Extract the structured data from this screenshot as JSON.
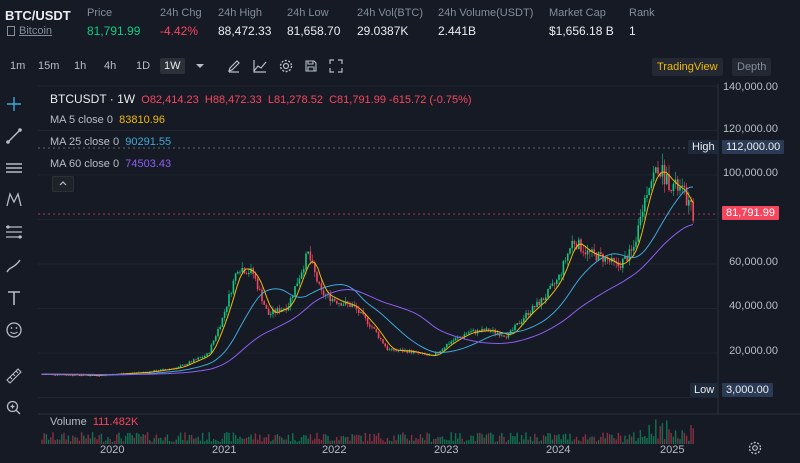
{
  "header": {
    "pair": "BTC/USDT",
    "pair_sub": "Bitcoin",
    "stats": [
      {
        "label": "Price",
        "value": "81,791.99",
        "tone": "green"
      },
      {
        "label": "24h Chg",
        "value": "-4.42%",
        "tone": "red"
      },
      {
        "label": "24h High",
        "value": "88,472.33",
        "tone": ""
      },
      {
        "label": "24h Low",
        "value": "81,658.70",
        "tone": ""
      },
      {
        "label": "24h Vol(BTC)",
        "value": "29.0387K",
        "tone": ""
      },
      {
        "label": "24h Volume(USDT)",
        "value": "2.441B",
        "tone": ""
      },
      {
        "label": "Market Cap",
        "value": "$1,656.18 B",
        "tone": ""
      },
      {
        "label": "Rank",
        "value": "1",
        "tone": ""
      }
    ]
  },
  "toolbar": {
    "timeframes": [
      "1m",
      "15m",
      "1h",
      "4h",
      "1D",
      "1W"
    ],
    "active_timeframe": "1W",
    "tabs": {
      "tradingview": "TradingView",
      "depth": "Depth"
    }
  },
  "chart": {
    "symbol": "BTCUSDT · 1W",
    "ohlc": {
      "o_label": "O",
      "o": "82,414.23",
      "h_label": "H",
      "h": "88,472.33",
      "l_label": "L",
      "l": "81,278.52",
      "c_label": "C",
      "c": "81,791.99",
      "chg": "-615.72 (-0.75%)"
    },
    "ma": [
      {
        "label": "MA 5 close 0",
        "value": "83810.96",
        "color": "#f0b90b"
      },
      {
        "label": "MA 25 close 0",
        "value": "90291.55",
        "color": "#3fa8d8"
      },
      {
        "label": "MA 60 close 0",
        "value": "74503.43",
        "color": "#8d5ff0"
      }
    ],
    "y_ticks": [
      "140,000.00",
      "120,000.00",
      "100,000.00",
      "60,000.00",
      "40,000.00",
      "20,000.00"
    ],
    "x_ticks": [
      "2020",
      "2021",
      "2022",
      "2023",
      "2024",
      "2025"
    ],
    "high_tag": {
      "label": "High",
      "value": "112,000.00"
    },
    "low_tag": {
      "label": "Low",
      "value": "3,000.00"
    },
    "last_price": "81,791.99",
    "volume": {
      "label": "Volume",
      "value": "111.482K"
    },
    "colors": {
      "up": "#0ecb81",
      "down": "#f6465d",
      "ma5": "#f0b90b",
      "ma25": "#3fa8d8",
      "ma60": "#8d5ff0"
    }
  }
}
